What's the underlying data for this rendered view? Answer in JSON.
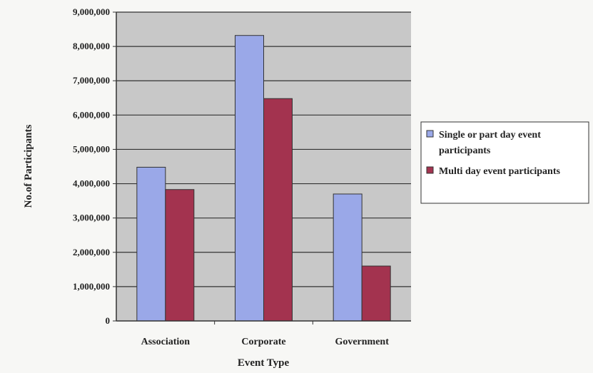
{
  "chart_data": {
    "type": "bar",
    "title": "",
    "xlabel": "Event Type",
    "ylabel": "No.of Participants",
    "categories": [
      "Association",
      "Corporate",
      "Government"
    ],
    "series": [
      {
        "name": "Single or part day event participants",
        "legend_lines": [
          "Single or part day event",
          "participants"
        ],
        "values": [
          4480000,
          8320000,
          3700000
        ],
        "color": "#9aa8e8"
      },
      {
        "name": "Multi day event participants",
        "legend_lines": [
          "Multi day event participants"
        ],
        "values": [
          3830000,
          6480000,
          1600000
        ],
        "color": "#a3334f"
      }
    ],
    "ylim": [
      0,
      9000000
    ],
    "yticks": [
      0,
      1000000,
      2000000,
      3000000,
      4000000,
      5000000,
      6000000,
      7000000,
      8000000,
      9000000
    ],
    "ytick_labels": [
      "0",
      "1,000,000",
      "2,000,000",
      "3,000,000",
      "4,000,000",
      "5,000,000",
      "6,000,000",
      "7,000,000",
      "8,000,000",
      "9,000,000"
    ],
    "grid": true,
    "legend_position": "right",
    "plot_background": "#c8c8c8"
  }
}
